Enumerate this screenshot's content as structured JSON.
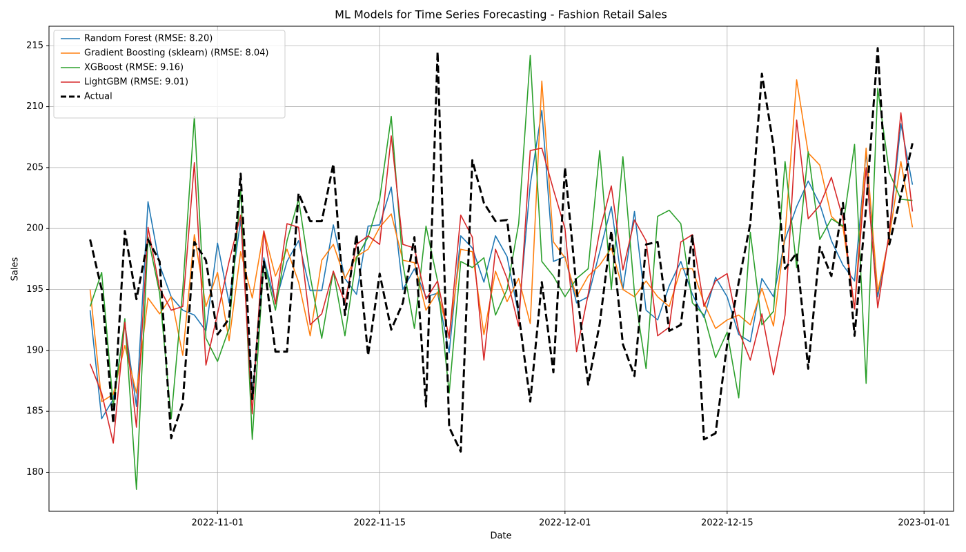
{
  "chart_data": {
    "type": "line",
    "title": "ML Models for Time Series Forecasting - Fashion Retail Sales",
    "xlabel": "Date",
    "ylabel": "Sales",
    "x": [
      "2022-10-21",
      "2022-10-22",
      "2022-10-23",
      "2022-10-24",
      "2022-10-25",
      "2022-10-26",
      "2022-10-27",
      "2022-10-28",
      "2022-10-29",
      "2022-10-30",
      "2022-10-31",
      "2022-11-01",
      "2022-11-02",
      "2022-11-03",
      "2022-11-04",
      "2022-11-05",
      "2022-11-06",
      "2022-11-07",
      "2022-11-08",
      "2022-11-09",
      "2022-11-10",
      "2022-11-11",
      "2022-11-12",
      "2022-11-13",
      "2022-11-14",
      "2022-11-15",
      "2022-11-16",
      "2022-11-17",
      "2022-11-18",
      "2022-11-19",
      "2022-11-20",
      "2022-11-21",
      "2022-11-22",
      "2022-11-23",
      "2022-11-24",
      "2022-11-25",
      "2022-11-26",
      "2022-11-27",
      "2022-11-28",
      "2022-11-29",
      "2022-11-30",
      "2022-12-01",
      "2022-12-02",
      "2022-12-03",
      "2022-12-04",
      "2022-12-05",
      "2022-12-06",
      "2022-12-07",
      "2022-12-08",
      "2022-12-09",
      "2022-12-10",
      "2022-12-11",
      "2022-12-12",
      "2022-12-13",
      "2022-12-14",
      "2022-12-15",
      "2022-12-16",
      "2022-12-17",
      "2022-12-18",
      "2022-12-19",
      "2022-12-20",
      "2022-12-21",
      "2022-12-22",
      "2022-12-23",
      "2022-12-24",
      "2022-12-25",
      "2022-12-26",
      "2022-12-27",
      "2022-12-28",
      "2022-12-29",
      "2022-12-30",
      "2022-12-31"
    ],
    "series": [
      {
        "name": "Random Forest (RMSE: 8.20)",
        "color": "#1f77b4",
        "dashed": false,
        "values": [
          193.3,
          184.4,
          186.0,
          192.2,
          185.4,
          202.2,
          197.0,
          194.4,
          193.3,
          192.9,
          191.6,
          198.8,
          193.9,
          200.7,
          186.1,
          197.6,
          193.9,
          197.3,
          199.0,
          194.9,
          194.9,
          200.3,
          195.9,
          194.6,
          200.2,
          200.3,
          203.4,
          195.0,
          196.7,
          194.4,
          194.7,
          189.8,
          199.4,
          198.4,
          195.6,
          199.4,
          197.7,
          192.9,
          203.6,
          209.7,
          197.3,
          197.7,
          193.9,
          194.4,
          198.1,
          201.8,
          195.0,
          201.4,
          193.3,
          192.5,
          195.3,
          197.3,
          194.6,
          192.7,
          196.0,
          194.4,
          191.3,
          190.7,
          195.9,
          194.4,
          199.1,
          201.8,
          203.9,
          202.0,
          199.0,
          197.0,
          195.7,
          206.3,
          194.4,
          199.5,
          208.6,
          203.6
        ]
      },
      {
        "name": "Gradient Boosting (sklearn) (RMSE: 8.04)",
        "color": "#ff7f0e",
        "dashed": false,
        "values": [
          195.0,
          185.8,
          186.4,
          190.4,
          186.5,
          194.3,
          193.0,
          194.4,
          189.6,
          199.5,
          193.6,
          196.4,
          190.8,
          198.1,
          194.3,
          199.8,
          196.1,
          198.3,
          195.6,
          191.2,
          197.4,
          198.7,
          195.9,
          197.7,
          198.3,
          200.1,
          201.2,
          197.4,
          197.2,
          193.3,
          194.8,
          191.2,
          198.3,
          198.1,
          191.3,
          196.5,
          194.0,
          195.9,
          192.2,
          212.1,
          198.9,
          197.6,
          194.4,
          196.1,
          197.0,
          198.4,
          195.0,
          194.4,
          195.7,
          194.4,
          193.6,
          196.7,
          196.7,
          193.9,
          191.8,
          192.5,
          192.9,
          192.1,
          195.1,
          192.0,
          199.5,
          212.2,
          206.2,
          205.2,
          201.0,
          200.1,
          193.4,
          206.6,
          194.8,
          199.3,
          205.5,
          200.1
        ]
      },
      {
        "name": "XGBoost (RMSE: 9.16)",
        "color": "#2ca02c",
        "dashed": false,
        "values": [
          193.6,
          196.4,
          185.4,
          192.6,
          178.6,
          199.3,
          194.7,
          184.4,
          195.0,
          209.2,
          191.0,
          189.1,
          191.8,
          203.2,
          182.7,
          197.3,
          193.3,
          199.0,
          202.4,
          196.1,
          191.0,
          196.5,
          191.2,
          197.6,
          199.3,
          202.4,
          209.2,
          197.1,
          191.8,
          200.2,
          195.7,
          186.5,
          197.3,
          196.8,
          197.6,
          192.9,
          195.0,
          200.4,
          214.2,
          197.3,
          196.1,
          194.4,
          195.9,
          196.7,
          206.4,
          195.0,
          205.9,
          194.7,
          188.5,
          201.0,
          201.5,
          200.4,
          193.9,
          192.9,
          189.4,
          191.5,
          186.1,
          199.7,
          192.1,
          193.2,
          205.5,
          196.8,
          206.3,
          199.1,
          200.8,
          200.2,
          206.9,
          187.3,
          211.5,
          204.6,
          202.4,
          202.3
        ]
      },
      {
        "name": "LightGBM (RMSE: 9.01)",
        "color": "#d62728",
        "dashed": false,
        "values": [
          188.9,
          186.5,
          182.4,
          192.3,
          183.7,
          200.1,
          195.1,
          193.3,
          193.6,
          205.4,
          188.8,
          193.0,
          197.3,
          201.1,
          184.8,
          199.8,
          193.8,
          200.4,
          200.1,
          192.1,
          193.0,
          196.5,
          193.9,
          198.7,
          199.4,
          198.7,
          207.6,
          198.7,
          198.4,
          194.2,
          195.7,
          191.0,
          201.1,
          199.3,
          189.2,
          198.3,
          195.9,
          192.0,
          206.4,
          206.6,
          203.2,
          200.0,
          189.9,
          194.6,
          199.8,
          203.5,
          196.6,
          200.7,
          199.0,
          191.2,
          191.9,
          198.9,
          199.5,
          193.6,
          195.7,
          196.3,
          191.6,
          189.2,
          193.0,
          188.0,
          192.9,
          208.9,
          200.8,
          201.9,
          204.2,
          200.8,
          193.4,
          205.0,
          193.5,
          199.7,
          209.5,
          201.4
        ]
      },
      {
        "name": "Actual",
        "color": "#000000",
        "dashed": true,
        "values": [
          199.1,
          195.0,
          184.0,
          199.8,
          194.2,
          199.1,
          197.3,
          182.8,
          185.7,
          198.9,
          197.4,
          191.3,
          192.6,
          204.5,
          186.0,
          197.3,
          189.9,
          189.9,
          202.9,
          200.6,
          200.6,
          205.3,
          192.9,
          199.5,
          189.6,
          196.3,
          191.7,
          193.9,
          199.3,
          185.4,
          214.5,
          183.7,
          181.7,
          205.6,
          202.1,
          200.6,
          200.7,
          193.0,
          185.8,
          195.6,
          188.2,
          205.0,
          195.1,
          187.2,
          192.2,
          199.8,
          190.5,
          187.9,
          198.7,
          198.9,
          191.6,
          192.1,
          199.5,
          182.7,
          183.2,
          190.5,
          195.6,
          200.4,
          212.7,
          206.8,
          196.7,
          198.0,
          188.5,
          198.5,
          196.1,
          202.1,
          191.2,
          201.8,
          214.8,
          198.7,
          202.7,
          207.0
        ]
      }
    ],
    "xlim": [
      "2022-10-17T10:48",
      "2023-01-03T13:12"
    ],
    "xticks": [
      "2022-11-01",
      "2022-11-15",
      "2022-12-01",
      "2022-12-15",
      "2023-01-01"
    ],
    "ylim": [
      176.8,
      216.6
    ],
    "yticks": [
      180,
      185,
      190,
      195,
      200,
      205,
      210,
      215
    ],
    "grid": true,
    "legend": "upper left"
  }
}
